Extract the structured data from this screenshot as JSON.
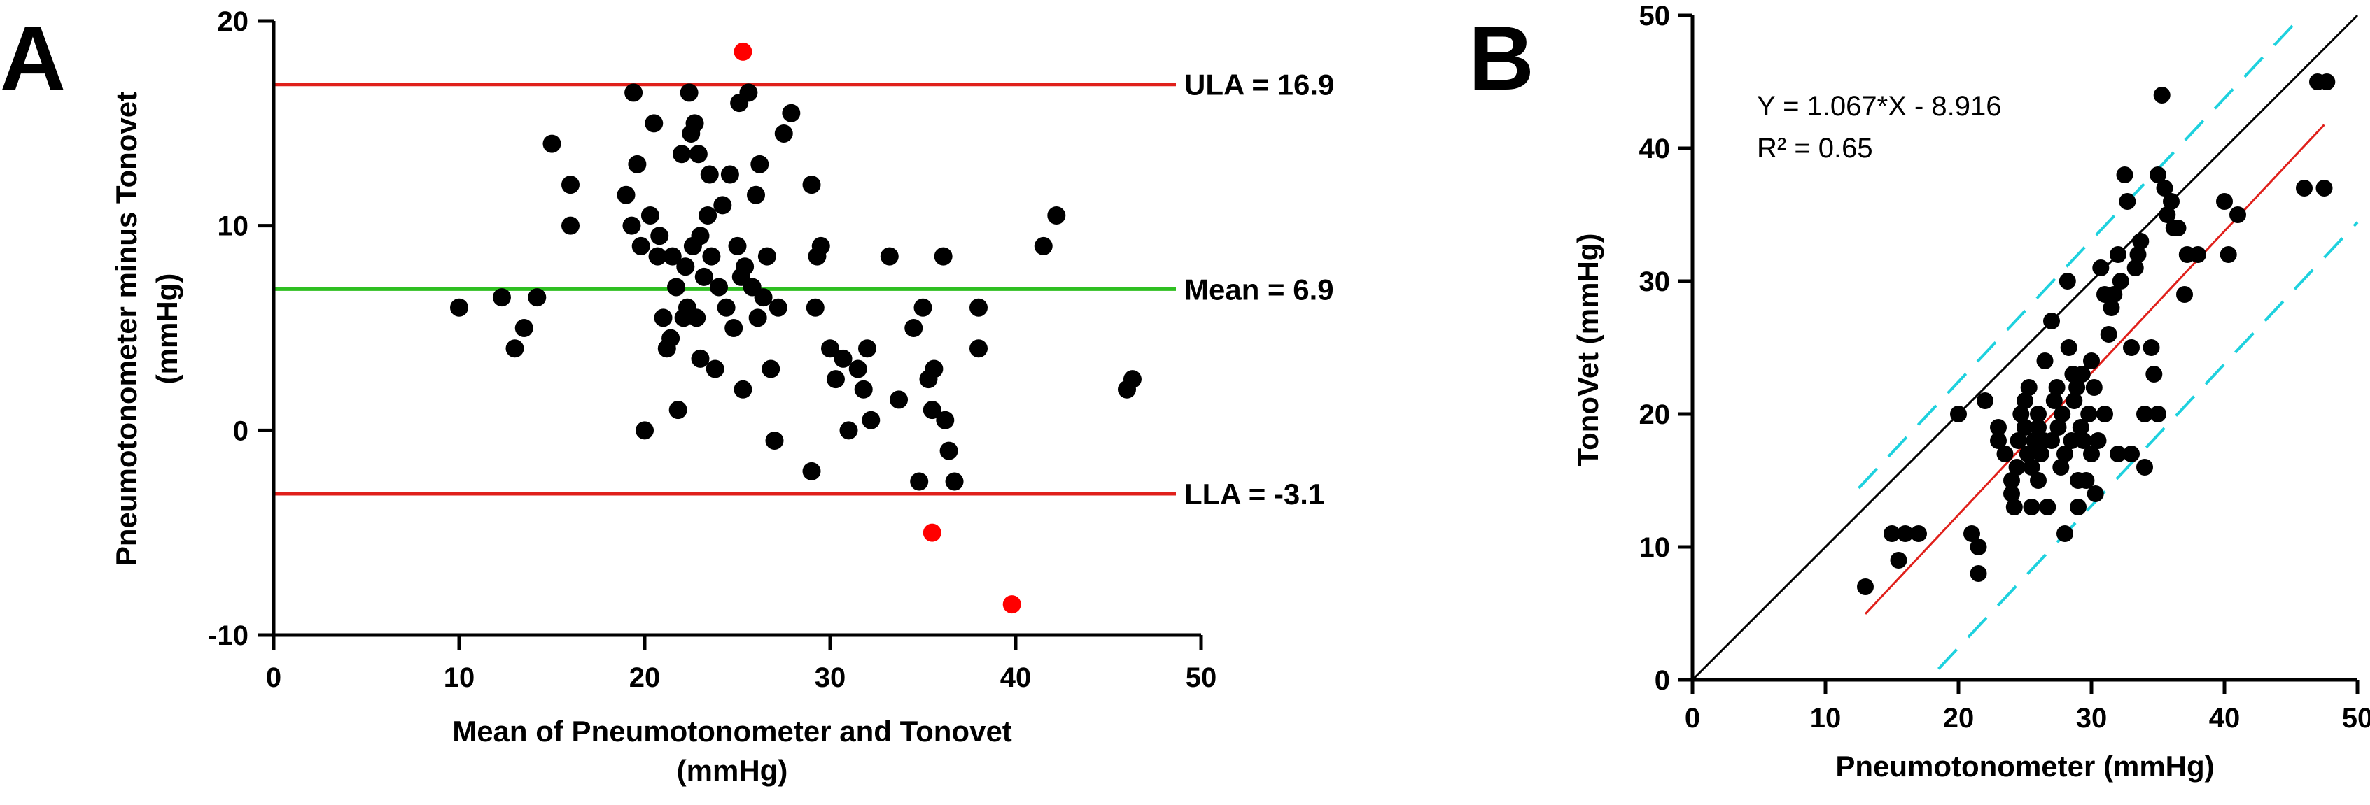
{
  "colors": {
    "points": "#000000",
    "outliers": "#ff0000",
    "limit_lines": "#e0201b",
    "mean_line": "#2fbf21",
    "identity_line": "#000000",
    "regression_line": "#e0201b",
    "prediction_band": "#1ed1de"
  },
  "chart_data": [
    {
      "type": "scatter",
      "panel": "A",
      "xlabel_line1": "Mean of Pneumotonometer and Tonovet",
      "xlabel_line2": "(mmHg)",
      "ylabel_line1": "Pneumotonometer minus Tonovet",
      "ylabel_line2": "(mmHg)",
      "xlim": [
        0,
        50
      ],
      "ylim": [
        -10,
        20
      ],
      "xticks": [
        0,
        10,
        20,
        30,
        40,
        50
      ],
      "yticks": [
        -10,
        0,
        10,
        20
      ],
      "grid": false,
      "reference_lines": [
        {
          "y": 16.9,
          "label": "ULA = 16.9",
          "color": "#e0201b"
        },
        {
          "y": 6.9,
          "label": "Mean = 6.9",
          "color": "#2fbf21"
        },
        {
          "y": -3.1,
          "label": "LLA = -3.1",
          "color": "#e0201b"
        }
      ],
      "points": [
        [
          10,
          6
        ],
        [
          12.3,
          6.5
        ],
        [
          13,
          4
        ],
        [
          13.5,
          5
        ],
        [
          14.2,
          6.5
        ],
        [
          15,
          14
        ],
        [
          16,
          12
        ],
        [
          16,
          10
        ],
        [
          19,
          11.5
        ],
        [
          19.3,
          10
        ],
        [
          19.4,
          16.5
        ],
        [
          19.6,
          13
        ],
        [
          19.8,
          9
        ],
        [
          20,
          0
        ],
        [
          20.3,
          10.5
        ],
        [
          20.5,
          15
        ],
        [
          20.7,
          8.5
        ],
        [
          20.8,
          9.5
        ],
        [
          21,
          5.5
        ],
        [
          21.2,
          4
        ],
        [
          21.4,
          4.5
        ],
        [
          21.5,
          8.5
        ],
        [
          21.7,
          7
        ],
        [
          21.8,
          1
        ],
        [
          22,
          13.5
        ],
        [
          22.1,
          5.5
        ],
        [
          22.2,
          8
        ],
        [
          22.3,
          6
        ],
        [
          22.4,
          16.5
        ],
        [
          22.5,
          14.5
        ],
        [
          22.6,
          9
        ],
        [
          22.7,
          15
        ],
        [
          22.8,
          5.5
        ],
        [
          22.9,
          13.5
        ],
        [
          23,
          9.5
        ],
        [
          23,
          3.5
        ],
        [
          23.2,
          7.5
        ],
        [
          23.4,
          10.5
        ],
        [
          23.5,
          12.5
        ],
        [
          23.6,
          8.5
        ],
        [
          23.8,
          3
        ],
        [
          24,
          7
        ],
        [
          24.2,
          11
        ],
        [
          24.4,
          6
        ],
        [
          24.6,
          12.5
        ],
        [
          24.8,
          5
        ],
        [
          25,
          9
        ],
        [
          25.1,
          16
        ],
        [
          25.2,
          7.5
        ],
        [
          25.3,
          2
        ],
        [
          25.4,
          8
        ],
        [
          25.6,
          16.5
        ],
        [
          25.8,
          7
        ],
        [
          26,
          11.5
        ],
        [
          26.1,
          5.5
        ],
        [
          26.2,
          13
        ],
        [
          26.4,
          6.5
        ],
        [
          26.6,
          8.5
        ],
        [
          26.8,
          3
        ],
        [
          27,
          -0.5
        ],
        [
          27.2,
          6
        ],
        [
          27.5,
          14.5
        ],
        [
          27.9,
          15.5
        ],
        [
          29,
          12
        ],
        [
          29,
          -2
        ],
        [
          29.2,
          6
        ],
        [
          29.3,
          8.5
        ],
        [
          29.5,
          9
        ],
        [
          30,
          4
        ],
        [
          30.3,
          2.5
        ],
        [
          30.7,
          3.5
        ],
        [
          31,
          0
        ],
        [
          31.5,
          3
        ],
        [
          31.8,
          2
        ],
        [
          32,
          4
        ],
        [
          32.2,
          0.5
        ],
        [
          33.2,
          8.5
        ],
        [
          33.7,
          1.5
        ],
        [
          34.5,
          5
        ],
        [
          34.8,
          -2.5
        ],
        [
          35,
          6
        ],
        [
          35.3,
          2.5
        ],
        [
          35.5,
          1
        ],
        [
          35.6,
          3
        ],
        [
          36.1,
          8.5
        ],
        [
          36.2,
          0.5
        ],
        [
          36.4,
          -1
        ],
        [
          36.7,
          -2.5
        ],
        [
          38,
          6
        ],
        [
          38,
          4
        ],
        [
          41.5,
          9
        ],
        [
          42.2,
          10.5
        ],
        [
          46,
          2
        ],
        [
          46.3,
          2.5
        ]
      ],
      "outliers": [
        [
          25.3,
          18.5
        ],
        [
          35.5,
          -5
        ],
        [
          39.8,
          -8.5
        ]
      ]
    },
    {
      "type": "scatter",
      "panel": "B",
      "xlabel": "Pneumotonometer (mmHg)",
      "ylabel": "TonoVet (mmHg)",
      "xlim": [
        0,
        50
      ],
      "ylim": [
        0,
        50
      ],
      "xticks": [
        0,
        10,
        20,
        30,
        40,
        50
      ],
      "yticks": [
        0,
        10,
        20,
        30,
        40,
        50
      ],
      "grid": false,
      "equation": "Y = 1.067*X - 8.916",
      "r_squared": "R² = 0.65",
      "regression": {
        "slope": 1.067,
        "intercept": -8.916,
        "x_range": [
          13,
          47.5
        ]
      },
      "identity_line": {
        "x_range": [
          0,
          50
        ]
      },
      "prediction_band": {
        "offset": 10,
        "x_range_upper": [
          12.5,
          45.5
        ],
        "x_range_lower": [
          18.5,
          50
        ]
      },
      "points": [
        [
          13,
          7
        ],
        [
          15,
          11
        ],
        [
          15.5,
          9
        ],
        [
          16,
          11
        ],
        [
          17,
          11
        ],
        [
          20,
          20
        ],
        [
          21,
          11
        ],
        [
          21.5,
          10
        ],
        [
          21.5,
          8
        ],
        [
          22,
          21
        ],
        [
          23,
          18
        ],
        [
          23,
          19
        ],
        [
          23.5,
          17
        ],
        [
          24,
          15
        ],
        [
          24,
          14
        ],
        [
          24.2,
          13
        ],
        [
          24.4,
          16
        ],
        [
          24.5,
          18
        ],
        [
          24.7,
          20
        ],
        [
          25,
          21
        ],
        [
          25,
          19
        ],
        [
          25.2,
          17
        ],
        [
          25.3,
          22
        ],
        [
          25.5,
          16
        ],
        [
          25.5,
          13
        ],
        [
          25.7,
          18
        ],
        [
          26,
          19
        ],
        [
          26,
          15
        ],
        [
          26,
          20
        ],
        [
          26.2,
          17
        ],
        [
          26.4,
          18
        ],
        [
          26.5,
          24
        ],
        [
          26.7,
          13
        ],
        [
          27,
          27
        ],
        [
          27,
          18
        ],
        [
          27.2,
          21
        ],
        [
          27.4,
          22
        ],
        [
          27.5,
          19
        ],
        [
          27.7,
          16
        ],
        [
          27.8,
          20
        ],
        [
          28,
          11
        ],
        [
          28,
          17
        ],
        [
          28.2,
          30
        ],
        [
          28.3,
          25
        ],
        [
          28.5,
          18
        ],
        [
          28.6,
          23
        ],
        [
          28.7,
          21
        ],
        [
          28.9,
          22
        ],
        [
          29,
          13
        ],
        [
          29,
          15
        ],
        [
          29.2,
          19
        ],
        [
          29.3,
          23
        ],
        [
          29.4,
          18
        ],
        [
          29.6,
          15
        ],
        [
          29.8,
          20
        ],
        [
          30,
          24
        ],
        [
          30,
          17
        ],
        [
          30.2,
          22
        ],
        [
          30.3,
          14
        ],
        [
          30.5,
          18
        ],
        [
          30.7,
          31
        ],
        [
          31,
          20
        ],
        [
          31,
          29
        ],
        [
          31.3,
          26
        ],
        [
          31.5,
          28
        ],
        [
          31.7,
          29
        ],
        [
          32,
          32
        ],
        [
          32,
          17
        ],
        [
          32.2,
          30
        ],
        [
          32.5,
          38
        ],
        [
          32.7,
          36
        ],
        [
          33,
          25
        ],
        [
          33,
          17
        ],
        [
          33.3,
          31
        ],
        [
          33.5,
          32
        ],
        [
          33.7,
          33
        ],
        [
          34,
          20
        ],
        [
          34,
          16
        ],
        [
          34.5,
          25
        ],
        [
          34.7,
          23
        ],
        [
          35,
          20
        ],
        [
          35,
          38
        ],
        [
          35.3,
          44
        ],
        [
          35.5,
          37
        ],
        [
          35.7,
          35
        ],
        [
          36,
          36
        ],
        [
          36.2,
          34
        ],
        [
          36.5,
          34
        ],
        [
          37,
          29
        ],
        [
          37.2,
          32
        ],
        [
          38,
          32
        ],
        [
          40,
          36
        ],
        [
          40.3,
          32
        ],
        [
          41,
          35
        ],
        [
          46,
          37
        ],
        [
          47,
          45
        ],
        [
          47.5,
          37
        ],
        [
          47.7,
          45
        ]
      ]
    }
  ]
}
